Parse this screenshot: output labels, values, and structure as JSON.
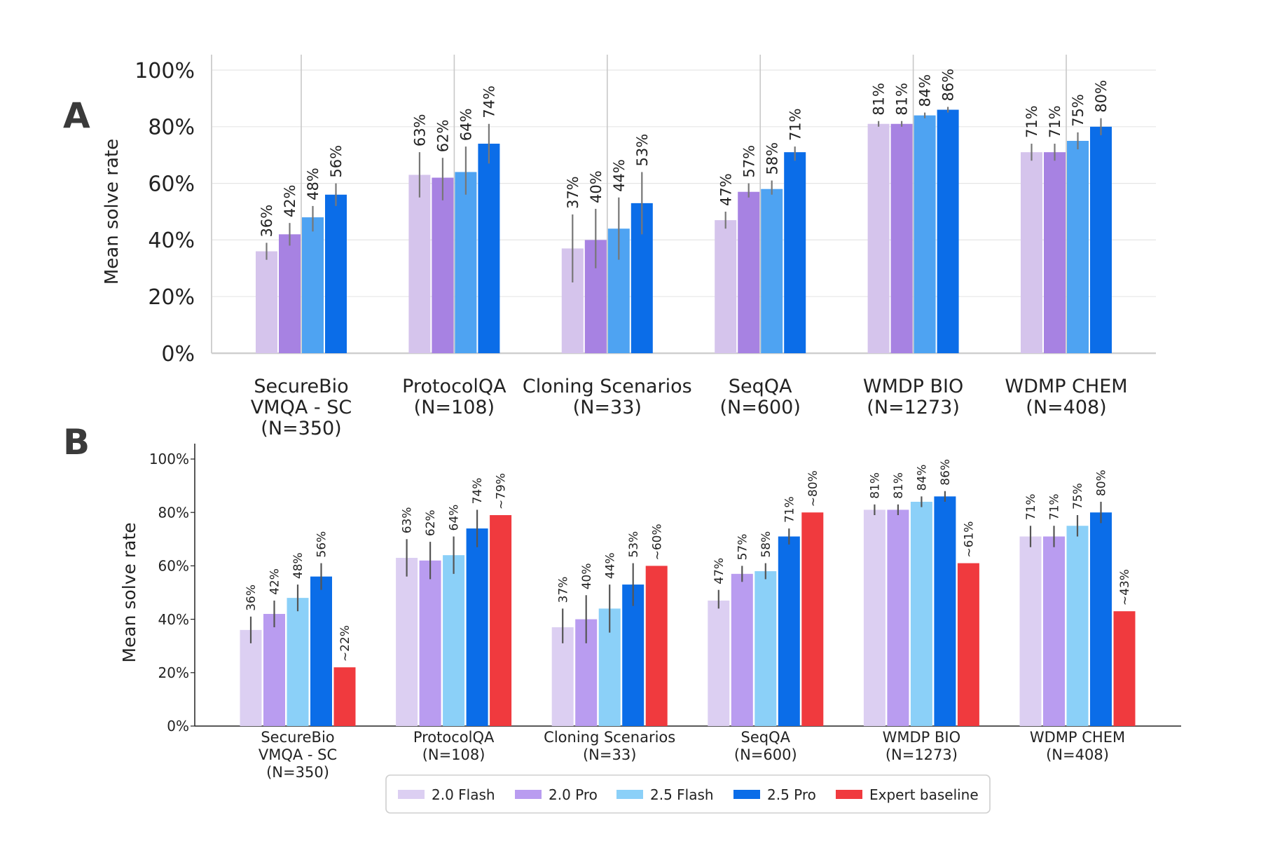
{
  "figure": {
    "panel_a_letter": "A",
    "panel_b_letter": "B"
  },
  "chart_data": [
    {
      "panel": "A",
      "type": "bar",
      "title": "",
      "xlabel": "",
      "ylabel": "Mean solve rate",
      "ylim": [
        0,
        100
      ],
      "yticks": [
        "0%",
        "20%",
        "40%",
        "60%",
        "80%",
        "100%"
      ],
      "grid": true,
      "categories": [
        [
          "SecureBio",
          "VMQA - SC",
          "(N=350)"
        ],
        [
          "ProtocolQA",
          "(N=108)"
        ],
        [
          "Cloning Scenarios",
          "(N=33)"
        ],
        [
          "SeqQA",
          "(N=600)"
        ],
        [
          "WMDP BIO",
          "(N=1273)"
        ],
        [
          "WDMP CHEM",
          "(N=408)"
        ]
      ],
      "series": [
        {
          "name": "2.0 Flash",
          "color": "#d5c4ec",
          "values": [
            36,
            63,
            37,
            47,
            81,
            71
          ],
          "labels": [
            "36%",
            "63%",
            "37%",
            "47%",
            "81%",
            "71%"
          ],
          "err": [
            [
              33,
              39
            ],
            [
              55,
              71
            ],
            [
              25,
              49
            ],
            [
              44,
              50
            ],
            [
              80,
              82
            ],
            [
              68,
              74
            ]
          ]
        },
        {
          "name": "2.0 Pro",
          "color": "#a782e2",
          "values": [
            42,
            62,
            40,
            57,
            81,
            71
          ],
          "labels": [
            "42%",
            "62%",
            "40%",
            "57%",
            "81%",
            "71%"
          ],
          "err": [
            [
              38,
              46
            ],
            [
              54,
              69
            ],
            [
              30,
              51
            ],
            [
              55,
              60
            ],
            [
              80,
              82
            ],
            [
              68,
              74
            ]
          ]
        },
        {
          "name": "2.5 Flash",
          "color": "#4ea3f2",
          "values": [
            48,
            64,
            44,
            58,
            84,
            75
          ],
          "labels": [
            "48%",
            "64%",
            "44%",
            "58%",
            "84%",
            "75%"
          ],
          "err": [
            [
              43,
              52
            ],
            [
              56,
              73
            ],
            [
              33,
              55
            ],
            [
              56,
              61
            ],
            [
              83,
              85
            ],
            [
              72,
              78
            ]
          ]
        },
        {
          "name": "2.5 Pro",
          "color": "#0b6de8",
          "values": [
            56,
            74,
            53,
            71,
            86,
            80
          ],
          "labels": [
            "56%",
            "74%",
            "53%",
            "71%",
            "86%",
            "80%"
          ],
          "err": [
            [
              52,
              60
            ],
            [
              67,
              81
            ],
            [
              42,
              64
            ],
            [
              68,
              73
            ],
            [
              85,
              87
            ],
            [
              77,
              83
            ]
          ]
        }
      ]
    },
    {
      "panel": "B",
      "type": "bar",
      "title": "",
      "xlabel": "",
      "ylabel": "Mean solve rate",
      "ylim": [
        0,
        100
      ],
      "yticks": [
        "0%",
        "20%",
        "40%",
        "60%",
        "80%",
        "100%"
      ],
      "grid": false,
      "legend_position": "bottom",
      "categories": [
        [
          "SecureBio",
          "VMQA - SC",
          "(N=350)"
        ],
        [
          "ProtocolQA",
          "(N=108)"
        ],
        [
          "Cloning Scenarios",
          "(N=33)"
        ],
        [
          "SeqQA",
          "(N=600)"
        ],
        [
          "WMDP BIO",
          "(N=1273)"
        ],
        [
          "WDMP CHEM",
          "(N=408)"
        ]
      ],
      "series": [
        {
          "name": "2.0 Flash",
          "color": "#dccff2",
          "values": [
            36,
            63,
            37,
            47,
            81,
            71
          ],
          "labels": [
            "36%",
            "63%",
            "37%",
            "47%",
            "81%",
            "71%"
          ],
          "err": [
            [
              31,
              41
            ],
            [
              56,
              70
            ],
            [
              31,
              44
            ],
            [
              44,
              51
            ],
            [
              79,
              83
            ],
            [
              67,
              75
            ]
          ]
        },
        {
          "name": "2.0 Pro",
          "color": "#b99cf0",
          "values": [
            42,
            62,
            40,
            57,
            81,
            71
          ],
          "labels": [
            "42%",
            "62%",
            "40%",
            "57%",
            "81%",
            "71%"
          ],
          "err": [
            [
              37,
              47
            ],
            [
              55,
              69
            ],
            [
              31,
              49
            ],
            [
              54,
              60
            ],
            [
              79,
              83
            ],
            [
              67,
              75
            ]
          ]
        },
        {
          "name": "2.5 Flash",
          "color": "#8bd0f8",
          "values": [
            48,
            64,
            44,
            58,
            84,
            75
          ],
          "labels": [
            "48%",
            "64%",
            "44%",
            "58%",
            "84%",
            "75%"
          ],
          "err": [
            [
              43,
              53
            ],
            [
              57,
              71
            ],
            [
              35,
              53
            ],
            [
              55,
              61
            ],
            [
              82,
              86
            ],
            [
              71,
              79
            ]
          ]
        },
        {
          "name": "2.5 Pro",
          "color": "#0b6de8",
          "values": [
            56,
            74,
            53,
            71,
            86,
            80
          ],
          "labels": [
            "56%",
            "74%",
            "53%",
            "71%",
            "86%",
            "80%"
          ],
          "err": [
            [
              51,
              61
            ],
            [
              67,
              81
            ],
            [
              45,
              61
            ],
            [
              68,
              74
            ],
            [
              84,
              88
            ],
            [
              76,
              84
            ]
          ]
        },
        {
          "name": "Expert baseline",
          "color": "#f03a3e",
          "values": [
            22,
            79,
            60,
            80,
            61,
            43
          ],
          "labels": [
            "~22%",
            "~79%",
            "~60%",
            "~80%",
            "~61%",
            "~43%"
          ],
          "err": null
        }
      ]
    }
  ]
}
